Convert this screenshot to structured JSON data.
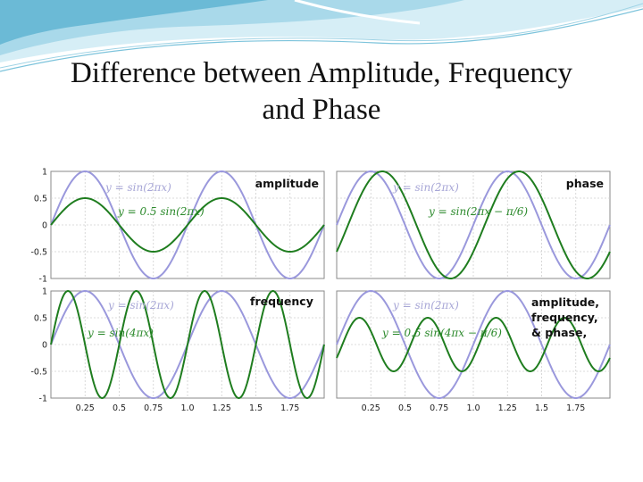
{
  "slide": {
    "title_line1": "Difference between Amplitude, Frequency",
    "title_line2": "and Phase"
  },
  "colors": {
    "blue_curve": "#9a98dc",
    "green_curve": "#1f7d1f",
    "blue_label": "#a7a6d6",
    "green_label": "#2c8a2c",
    "deco_light": "#bfe3f0",
    "deco_dark": "#4fa9c9"
  },
  "chart_data": [
    {
      "type": "line",
      "title": "amplitude",
      "xlim": [
        0,
        2
      ],
      "ylim": [
        -1,
        1
      ],
      "y_ticks": [
        "1",
        "0.5",
        "0",
        "-0.5",
        "-1"
      ],
      "x_ticks": [],
      "grid": true,
      "series": [
        {
          "name": "y = sin(2πx)",
          "expr": "sin(2πx)",
          "amplitude": 1,
          "frequency": 1,
          "phase": 0
        },
        {
          "name": "y = 0.5 sin(2πx)",
          "expr": "0.5 sin(2πx)",
          "amplitude": 0.5,
          "frequency": 1,
          "phase": 0
        }
      ]
    },
    {
      "type": "line",
      "title": "phase",
      "xlim": [
        0,
        2
      ],
      "ylim": [
        -1,
        1
      ],
      "y_ticks": [],
      "x_ticks": [],
      "grid": true,
      "series": [
        {
          "name": "y = sin(2πx)",
          "expr": "sin(2πx)",
          "amplitude": 1,
          "frequency": 1,
          "phase": 0
        },
        {
          "name": "y = sin(2πx − π/6)",
          "expr": "sin(2πx − π/6)",
          "amplitude": 1,
          "frequency": 1,
          "phase": -0.5236
        }
      ]
    },
    {
      "type": "line",
      "title": "frequency",
      "xlim": [
        0,
        2
      ],
      "ylim": [
        -1,
        1
      ],
      "y_ticks": [
        "1",
        "0.5",
        "0",
        "-0.5",
        "-1"
      ],
      "x_ticks": [
        "0.25",
        "0.5",
        "0.75",
        "1.0",
        "1.25",
        "1.5",
        "1.75"
      ],
      "grid": true,
      "series": [
        {
          "name": "y = sin(2πx)",
          "expr": "sin(2πx)",
          "amplitude": 1,
          "frequency": 1,
          "phase": 0
        },
        {
          "name": "y = sin(4πx)",
          "expr": "sin(4πx)",
          "amplitude": 1,
          "frequency": 2,
          "phase": 0
        }
      ]
    },
    {
      "type": "line",
      "title": "amplitude, frequency, & phase,",
      "title_lines": [
        "amplitude,",
        "frequency,",
        "& phase,"
      ],
      "xlim": [
        0,
        2
      ],
      "ylim": [
        -1,
        1
      ],
      "y_ticks": [],
      "x_ticks": [
        "0.25",
        "0.5",
        "0.75",
        "1.0",
        "1.25",
        "1.5",
        "1.75"
      ],
      "grid": true,
      "series": [
        {
          "name": "y = sin(2πx)",
          "expr": "sin(2πx)",
          "amplitude": 1,
          "frequency": 1,
          "phase": 0
        },
        {
          "name": "y = 0.5 sin(4πx − π/6)",
          "expr": "0.5 sin(4πx − π/6)",
          "amplitude": 0.5,
          "frequency": 2,
          "phase": -0.5236
        }
      ]
    }
  ]
}
